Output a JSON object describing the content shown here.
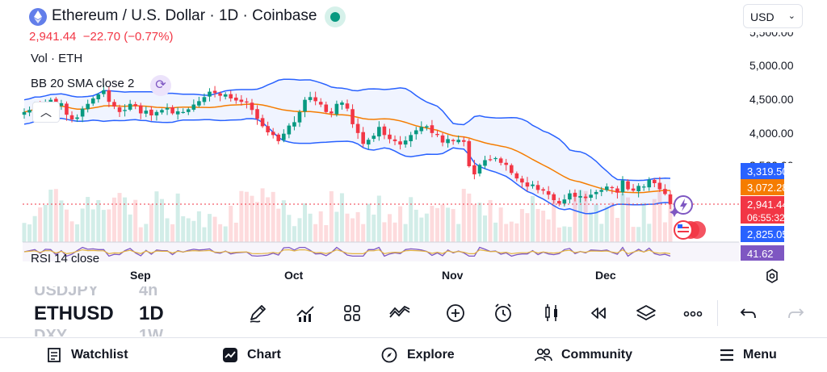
{
  "header": {
    "symbol_title": "Ethereum / U.S. Dollar · 1D · Coinbase",
    "currency": "USD",
    "last_price": "2,941.44",
    "change": "−22.70 (−0.77%)",
    "vol_label": "Vol · ETH",
    "bb_label": "BB 20 SMA close 2"
  },
  "price_axis": {
    "ticks": [
      "5,500.00",
      "5,000.00",
      "4,500.00",
      "4,000.00",
      "3,500.00"
    ],
    "tags": {
      "bb_upper": "3,319.50",
      "bb_basis": "3,072.28",
      "last": "2,941.44",
      "countdown": "06:55:32",
      "bb_lower": "2,825.05",
      "rsi": "41.62"
    }
  },
  "rsi_label": "RSI 14 close",
  "time_axis": [
    "Sep",
    "Oct",
    "Nov",
    "Dec"
  ],
  "symbol_picker": {
    "prev_symbol": "USDJPY",
    "prev_interval": "4h",
    "symbol": "ETHUSD",
    "interval": "1D",
    "next_symbol": "DXY",
    "next_interval": "1W"
  },
  "toolbar": [
    "pencil-icon",
    "indicators-icon",
    "templates-icon",
    "compare-icon",
    "add-icon",
    "alert-icon",
    "chart-type-icon",
    "replay-icon",
    "layers-icon",
    "more-icon",
    "undo-icon",
    "redo-icon"
  ],
  "bottom_nav": {
    "watchlist": "Watchlist",
    "chart": "Chart",
    "explore": "Explore",
    "community": "Community",
    "menu": "Menu"
  },
  "colors": {
    "up": "#089981",
    "down": "#f23645",
    "bb_band": "#2962ff",
    "bb_basis": "#f57c00",
    "rsi": "#7e57c2"
  },
  "chart_data": {
    "type": "candlestick",
    "symbol": "ETHUSD",
    "interval": "1D",
    "ohlc_approx_close": [
      4300,
      4330,
      4390,
      4350,
      4420,
      4480,
      4400,
      4430,
      4260,
      4190,
      4220,
      4350,
      4420,
      4500,
      4560,
      4620,
      4450,
      4380,
      4300,
      4330,
      4420,
      4390,
      4280,
      4320,
      4250,
      4300,
      4330,
      4360,
      4280,
      4310,
      4300,
      4340,
      4410,
      4460,
      4520,
      4600,
      4580,
      4540,
      4560,
      4500,
      4470,
      4450,
      4440,
      4330,
      4200,
      4090,
      4000,
      3960,
      3870,
      3980,
      4100,
      4150,
      4300,
      4480,
      4520,
      4460,
      4410,
      4300,
      4280,
      4420,
      4440,
      4350,
      4120,
      3990,
      3830,
      3890,
      3950,
      4080,
      3960,
      3900,
      3870,
      3820,
      3880,
      3960,
      4030,
      4080,
      4090,
      3990,
      3960,
      3850,
      3900,
      3870,
      3890,
      3860,
      3500,
      3380,
      3520,
      3590,
      3600,
      3620,
      3550,
      3520,
      3400,
      3320,
      3260,
      3200,
      3230,
      3150,
      3140,
      3080,
      3000,
      2950,
      3010,
      3100,
      3050,
      3060,
      3030,
      3080,
      3120,
      3150,
      3200,
      3180,
      3110,
      3290,
      3160,
      3140,
      3210,
      3200,
      3300,
      3250,
      3160,
      3090,
      2941.44
    ],
    "bollinger": {
      "period": 20,
      "stddev": 2,
      "upper_last": 3319.5,
      "basis_last": 3072.28,
      "lower_last": 2825.05
    },
    "rsi": {
      "period": 14,
      "last": 41.62
    },
    "yticks": [
      5500,
      5000,
      4500,
      4000,
      3500
    ],
    "xticks": [
      "Sep",
      "Oct",
      "Nov",
      "Dec"
    ]
  }
}
